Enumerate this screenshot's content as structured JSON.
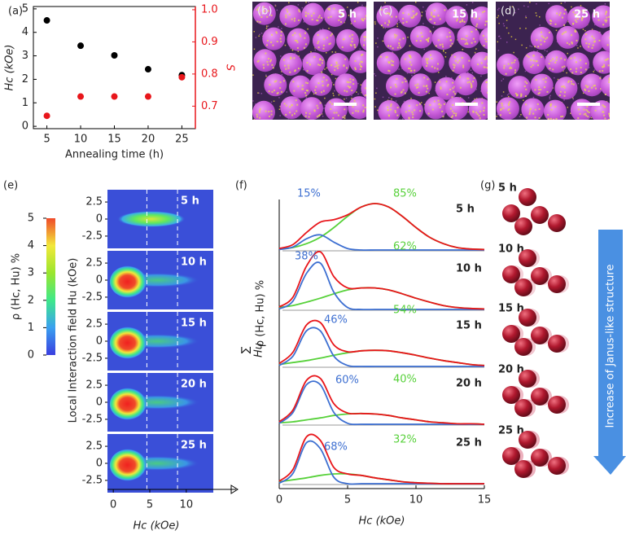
{
  "panel_labels": [
    "(a)",
    "(b)",
    "(c)",
    "(d)",
    "(e)",
    "(f)",
    "(g)"
  ],
  "images": [
    {
      "label": "5 h"
    },
    {
      "label": "15 h"
    },
    {
      "label": "25 h"
    }
  ],
  "schematic": {
    "times": [
      "5 h",
      "10 h",
      "15 h",
      "20 h",
      "25 h"
    ],
    "arrow_text": "Increase of Janus-like structure"
  },
  "chart_data": [
    {
      "type": "scatter",
      "xlabel": "Annealing time (h)",
      "ylabel": "Hc (kOe)",
      "y2label": "S",
      "x": [
        5,
        10,
        15,
        20,
        25
      ],
      "xlim": [
        3,
        27
      ],
      "xticks": [
        5,
        10,
        15,
        20,
        25
      ],
      "ylim": [
        -0.1,
        5.1
      ],
      "yticks": [
        0,
        1,
        2,
        3,
        4,
        5
      ],
      "y2lim": [
        0.63,
        1.01
      ],
      "y2ticks": [
        0.7,
        0.8,
        0.9,
        {
          "value": 1,
          "label": "1.0"
        }
      ],
      "series": [
        {
          "color": "#000000",
          "values": [
            4.51,
            3.43,
            3.02,
            2.43,
            2.18
          ]
        },
        {
          "color": "#e8161b",
          "axis": "y2",
          "values": [
            0.67,
            0.73,
            0.73,
            0.73,
            0.79
          ]
        }
      ]
    },
    {
      "type": "heatmap",
      "ylabel": "Local Interaction field Hu (kOe)",
      "xlabel": "Hc (kOe)",
      "xlim": [
        -0.8,
        13.7
      ],
      "xticks": [
        0,
        5,
        10
      ],
      "ylim": [
        -4.3,
        4.3
      ],
      "yticks": [
        2.5,
        0,
        -2.5
      ],
      "dashed_x": [
        4.6,
        8.8
      ],
      "panels": [
        "5 h",
        "10 h",
        "15 h",
        "20 h",
        "25 h"
      ],
      "colorbar": {
        "label": "ρ (Hc, Hu) %",
        "lim": [
          0,
          5
        ],
        "ticks": [
          0,
          1,
          2,
          3,
          4,
          5
        ],
        "colors": [
          "#3a3ee0",
          "#3aa0f0",
          "#3ee88a",
          "#9ae62e",
          "#f2e83a",
          "#f04a2a"
        ]
      }
    },
    {
      "type": "line",
      "xlabel": "Hc (kOe)",
      "ylabel": "ρ (Hc, Hu) %",
      "ylabel_sum": "∑",
      "ylabel_sum_sub": "Hu",
      "xlim": [
        0,
        15
      ],
      "xticks": [
        0,
        5,
        10,
        15
      ],
      "ylim": [
        0,
        1.2
      ],
      "x": [
        0,
        1,
        2,
        3,
        4,
        5,
        6,
        7,
        8,
        9,
        10,
        11,
        12,
        13,
        14,
        15
      ],
      "panels": [
        {
          "label": "5 h",
          "blue_label": "15%",
          "green_label": "85%",
          "series": [
            {
              "color": "#e8161b",
              "values": [
                0.03,
                0.11,
                0.36,
                0.57,
                0.62,
                0.72,
                0.88,
                0.95,
                0.88,
                0.69,
                0.46,
                0.26,
                0.13,
                0.05,
                0.02,
                0.01
              ]
            },
            {
              "color": "#3d6fd1",
              "values": [
                0.01,
                0.06,
                0.23,
                0.31,
                0.16,
                0.03,
                0,
                0,
                0,
                0,
                0,
                0,
                0,
                0,
                0,
                0
              ]
            },
            {
              "color": "#57d13a",
              "values": [
                0.02,
                0.05,
                0.13,
                0.26,
                0.46,
                0.69,
                0.88,
                0.95,
                0.88,
                0.69,
                0.46,
                0.26,
                0.13,
                0.05,
                0.02,
                0.01
              ]
            }
          ]
        },
        {
          "label": "10 h",
          "blue_label": "38%",
          "green_label": "62%",
          "series": [
            {
              "color": "#e8161b",
              "values": [
                0.05,
                0.25,
                0.89,
                1.18,
                0.67,
                0.44,
                0.44,
                0.44,
                0.4,
                0.32,
                0.23,
                0.15,
                0.08,
                0.04,
                0.02,
                0.01
              ]
            },
            {
              "color": "#3d6fd1",
              "values": [
                0.01,
                0.17,
                0.74,
                0.95,
                0.35,
                0.04,
                0,
                0,
                0,
                0,
                0,
                0,
                0,
                0,
                0,
                0
              ]
            },
            {
              "color": "#57d13a",
              "values": [
                0.04,
                0.08,
                0.15,
                0.23,
                0.32,
                0.4,
                0.44,
                0.44,
                0.4,
                0.32,
                0.23,
                0.15,
                0.08,
                0.04,
                0.02,
                0.01
              ]
            }
          ]
        },
        {
          "label": "15 h",
          "blue_label": "46%",
          "green_label": "54%",
          "series": [
            {
              "color": "#e8161b",
              "values": [
                0.06,
                0.29,
                0.85,
                0.9,
                0.44,
                0.3,
                0.32,
                0.33,
                0.32,
                0.28,
                0.23,
                0.17,
                0.12,
                0.08,
                0.04,
                0.02
              ]
            },
            {
              "color": "#3d6fd1",
              "values": [
                0.02,
                0.21,
                0.73,
                0.73,
                0.21,
                0.02,
                0,
                0,
                0,
                0,
                0,
                0,
                0,
                0,
                0,
                0
              ]
            },
            {
              "color": "#57d13a",
              "values": [
                0.04,
                0.08,
                0.12,
                0.17,
                0.23,
                0.28,
                0.32,
                0.33,
                0.32,
                0.28,
                0.23,
                0.17,
                0.12,
                0.08,
                0.04,
                0.02
              ]
            }
          ]
        },
        {
          "label": "20 h",
          "blue_label": "60%",
          "green_label": "40%",
          "series": [
            {
              "color": "#e8161b",
              "values": [
                0.05,
                0.29,
                0.9,
                0.94,
                0.42,
                0.23,
                0.22,
                0.21,
                0.18,
                0.13,
                0.09,
                0.05,
                0.03,
                0.01,
                0.01,
                0
              ]
            },
            {
              "color": "#3d6fd1",
              "values": [
                0.02,
                0.24,
                0.81,
                0.81,
                0.24,
                0.02,
                0,
                0,
                0,
                0,
                0,
                0,
                0,
                0,
                0,
                0
              ]
            },
            {
              "color": "#57d13a",
              "values": [
                0.03,
                0.05,
                0.09,
                0.13,
                0.18,
                0.21,
                0.22,
                0.21,
                0.18,
                0.13,
                0.09,
                0.05,
                0.03,
                0.01,
                0.01,
                0
              ]
            }
          ]
        },
        {
          "label": "25 h",
          "blue_label": "68%",
          "green_label": "32%",
          "series": [
            {
              "color": "#e8161b",
              "values": [
                0.05,
                0.29,
                0.96,
                0.89,
                0.33,
                0.2,
                0.17,
                0.12,
                0.08,
                0.04,
                0.02,
                0.01,
                0,
                0,
                0,
                0
              ]
            },
            {
              "color": "#3d6fd1",
              "values": [
                0.01,
                0.21,
                0.84,
                0.72,
                0.13,
                0,
                0,
                0,
                0,
                0,
                0,
                0,
                0,
                0,
                0,
                0
              ]
            },
            {
              "color": "#57d13a",
              "values": [
                0.04,
                0.08,
                0.12,
                0.17,
                0.2,
                0.2,
                0.17,
                0.12,
                0.08,
                0.04,
                0.02,
                0.01,
                0,
                0,
                0,
                0
              ]
            }
          ]
        }
      ]
    }
  ]
}
